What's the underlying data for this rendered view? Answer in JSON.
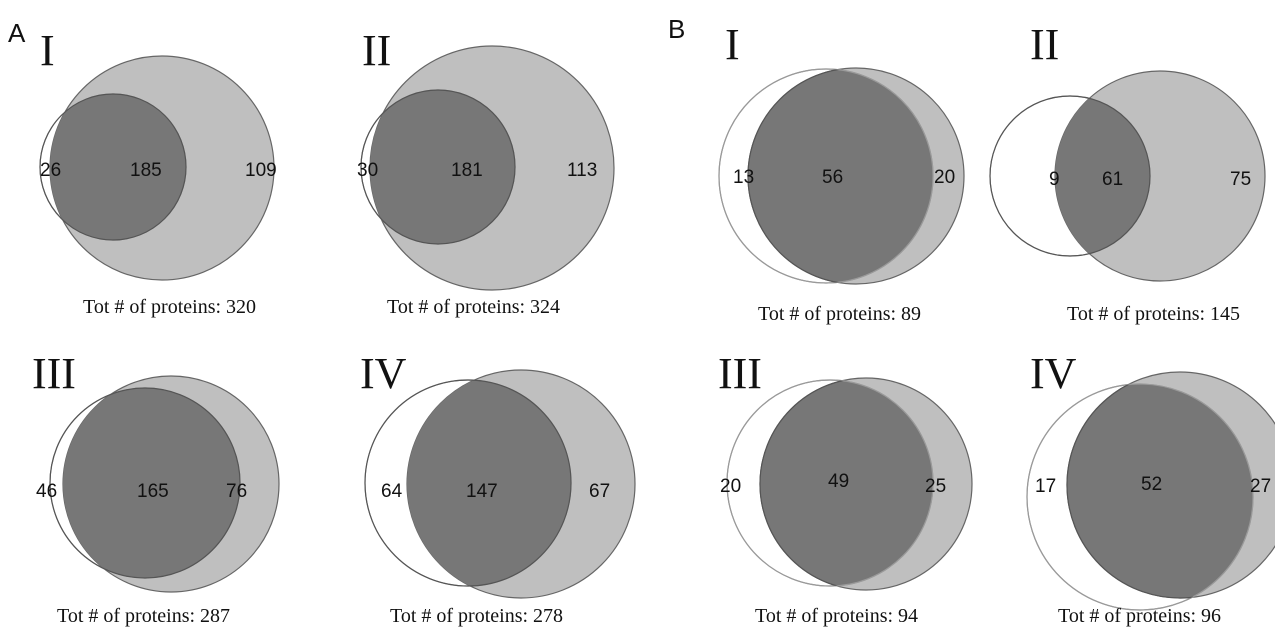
{
  "panels": [
    {
      "letter": "A",
      "diagrams": [
        {
          "numeral": "I",
          "only_first": "26",
          "overlap": "185",
          "only_second": "109",
          "caption": "Tot # of proteins: 320"
        },
        {
          "numeral": "II",
          "only_first": "30",
          "overlap": "181",
          "only_second": "113",
          "caption": "Tot # of proteins: 324"
        },
        {
          "numeral": "III",
          "only_first": "46",
          "overlap": "165",
          "only_second": "76",
          "caption": "Tot # of proteins:  287"
        },
        {
          "numeral": "IV",
          "only_first": "64",
          "overlap": "147",
          "only_second": "67",
          "caption": "Tot # of proteins:  278"
        }
      ]
    },
    {
      "letter": "B",
      "diagrams": [
        {
          "numeral": "I",
          "only_first": "13",
          "overlap": "56",
          "only_second": "20",
          "caption": "Tot # of proteins: 89"
        },
        {
          "numeral": "II",
          "only_first": "9",
          "overlap": "61",
          "only_second": "75",
          "caption": "Tot # of proteins: 145"
        },
        {
          "numeral": "III",
          "only_first": "20",
          "overlap": "49",
          "only_second": "25",
          "caption": "Tot # of proteins: 94"
        },
        {
          "numeral": "IV",
          "only_first": "17",
          "overlap": "52",
          "only_second": "27",
          "caption": "Tot # of proteins: 96"
        }
      ]
    }
  ],
  "colors": {
    "first_set_outline": "#9a9a9a",
    "second_set_fill": "#bfbfbf",
    "overlap_fill": "#777777",
    "outline": "#555555"
  }
}
